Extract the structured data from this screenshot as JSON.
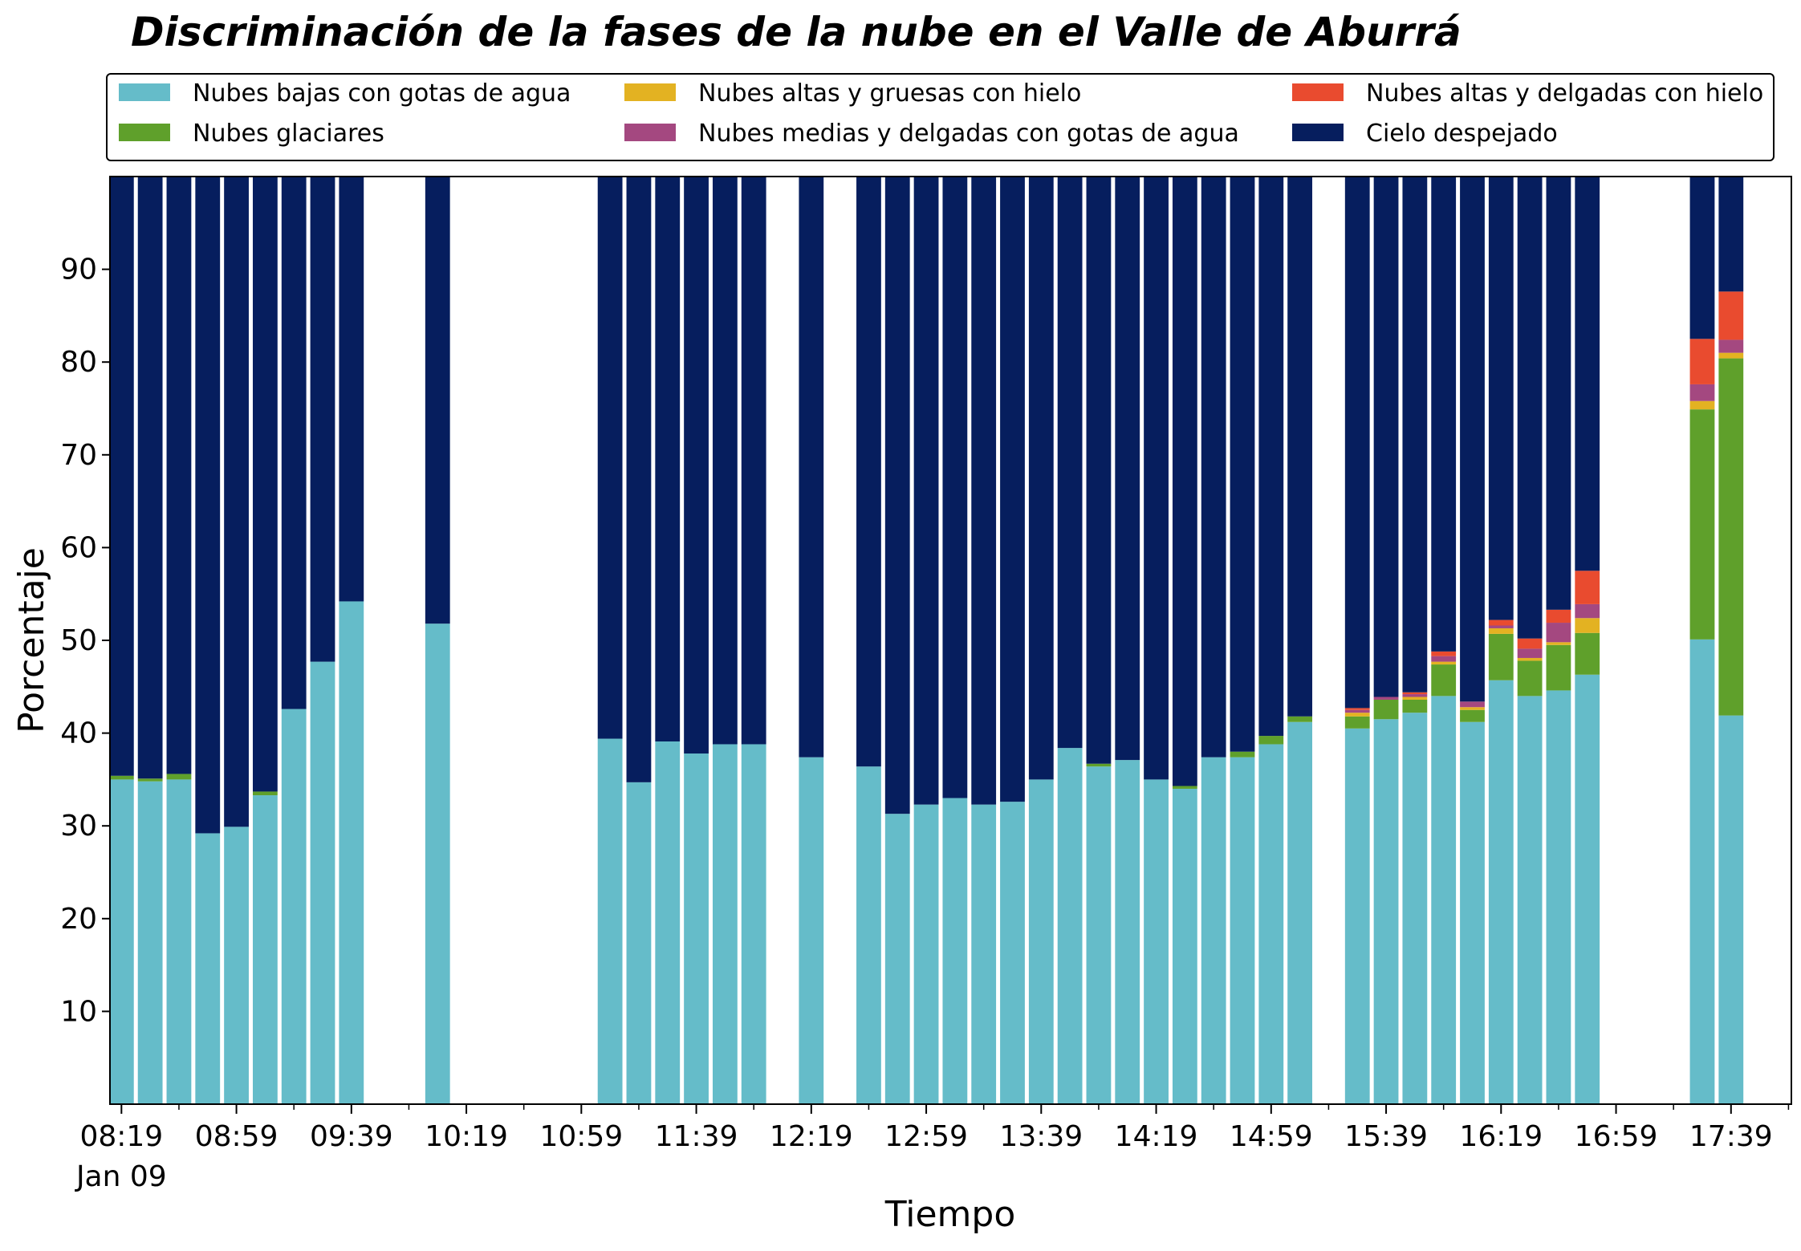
{
  "chart_data": {
    "type": "bar",
    "stacked": true,
    "title": "Discriminación de la fases de la nube en el Valle de Aburrá",
    "xlabel": "Tiempo",
    "ylabel": "Porcentaje",
    "ylim": [
      0,
      100
    ],
    "yticks": [
      10,
      20,
      30,
      40,
      50,
      60,
      70,
      80,
      90
    ],
    "x_minutes_range": [
      495,
      1080
    ],
    "bar_interval_minutes": 10,
    "xticks": [
      {
        "minute": 499,
        "label": "08:19",
        "sublabel": "Jan 09"
      },
      {
        "minute": 539,
        "label": "08:59"
      },
      {
        "minute": 579,
        "label": "09:39"
      },
      {
        "minute": 619,
        "label": "10:19"
      },
      {
        "minute": 659,
        "label": "10:59"
      },
      {
        "minute": 699,
        "label": "11:39"
      },
      {
        "minute": 739,
        "label": "12:19"
      },
      {
        "minute": 779,
        "label": "12:59"
      },
      {
        "minute": 819,
        "label": "13:39"
      },
      {
        "minute": 859,
        "label": "14:19"
      },
      {
        "minute": 899,
        "label": "14:59"
      },
      {
        "minute": 939,
        "label": "15:39"
      },
      {
        "minute": 979,
        "label": "16:19"
      },
      {
        "minute": 1019,
        "label": "16:59"
      },
      {
        "minute": 1059,
        "label": "17:39"
      }
    ],
    "legend_position": "top",
    "times": [
      "08:19",
      "08:29",
      "08:39",
      "08:49",
      "08:59",
      "09:09",
      "09:19",
      "09:29",
      "09:39",
      "10:09",
      "11:09",
      "11:19",
      "11:29",
      "11:39",
      "11:49",
      "11:59",
      "12:19",
      "12:39",
      "12:49",
      "12:59",
      "13:09",
      "13:19",
      "13:29",
      "13:39",
      "13:49",
      "13:59",
      "14:09",
      "14:19",
      "14:29",
      "14:39",
      "14:49",
      "14:59",
      "15:09",
      "15:29",
      "15:39",
      "15:49",
      "15:59",
      "16:09",
      "16:19",
      "16:29",
      "16:39",
      "16:49",
      "17:29",
      "17:39"
    ],
    "series": [
      {
        "name": "Nubes bajas con gotas de agua",
        "color": "#65bcc9",
        "values": [
          35,
          34.8,
          35,
          29.2,
          29.9,
          33.3,
          42.6,
          47.7,
          54.2,
          51.8,
          39.4,
          34.7,
          39.1,
          37.8,
          38.8,
          38.8,
          37.4,
          36.4,
          31.3,
          32.3,
          33,
          32.3,
          32.6,
          35,
          38.4,
          36.4,
          37.1,
          35,
          34,
          37.4,
          37.4,
          38.8,
          41.2,
          40.5,
          41.5,
          42.2,
          44,
          41.2,
          45.7,
          44,
          44.6,
          46.3,
          50.1,
          41.9
        ]
      },
      {
        "name": "Nubes glaciares",
        "color": "#5fa02b",
        "values": [
          0.4,
          0.3,
          0.6,
          0,
          0,
          0.4,
          0,
          0,
          0,
          0,
          0,
          0,
          0,
          0,
          0,
          0,
          0,
          0,
          0,
          0,
          0,
          0,
          0,
          0,
          0,
          0.3,
          0,
          0,
          0.3,
          0,
          0.6,
          0.9,
          0.6,
          1.3,
          2.1,
          1.4,
          3.4,
          1.3,
          5,
          3.8,
          4.9,
          4.5,
          24.8,
          38.5
        ]
      },
      {
        "name": "Nubes altas y gruesas con hielo",
        "color": "#e3b222",
        "values": [
          0,
          0,
          0,
          0,
          0,
          0,
          0,
          0,
          0,
          0,
          0,
          0,
          0,
          0,
          0,
          0,
          0,
          0,
          0,
          0,
          0,
          0,
          0,
          0,
          0,
          0,
          0,
          0,
          0,
          0,
          0,
          0,
          0,
          0.4,
          0,
          0.3,
          0.3,
          0.3,
          0.6,
          0.3,
          0.3,
          1.6,
          0.9,
          0.6
        ]
      },
      {
        "name": "Nubes medias y delgadas con gotas de agua",
        "color": "#a44880",
        "values": [
          0,
          0,
          0,
          0,
          0,
          0,
          0,
          0,
          0,
          0,
          0,
          0,
          0,
          0,
          0,
          0,
          0,
          0,
          0,
          0,
          0,
          0,
          0,
          0,
          0,
          0,
          0,
          0,
          0,
          0,
          0,
          0,
          0,
          0.3,
          0.3,
          0.3,
          0.6,
          0.6,
          0.3,
          1,
          2.1,
          1.5,
          1.8,
          1.4
        ]
      },
      {
        "name": "Nubes altas y delgadas con hielo",
        "color": "#e94b2f",
        "values": [
          0,
          0,
          0,
          0,
          0,
          0,
          0,
          0,
          0,
          0,
          0,
          0,
          0,
          0,
          0,
          0,
          0,
          0,
          0,
          0,
          0,
          0,
          0,
          0,
          0,
          0,
          0,
          0,
          0,
          0,
          0,
          0,
          0,
          0.2,
          0,
          0.2,
          0.5,
          0,
          0.6,
          1.1,
          1.4,
          3.6,
          4.9,
          5.2
        ]
      },
      {
        "name": "Cielo despejado",
        "color": "#061e5e",
        "values": [
          64.6,
          64.9,
          64.4,
          70.8,
          70.1,
          66.3,
          57.4,
          52.3,
          45.8,
          48.2,
          60.6,
          65.3,
          60.9,
          62.2,
          61.2,
          61.2,
          62.6,
          63.6,
          68.7,
          67.7,
          67,
          67.7,
          67.4,
          65,
          61.6,
          63.3,
          62.9,
          65,
          65.7,
          62.6,
          62,
          60.3,
          58.2,
          57.3,
          56.1,
          55.6,
          51.2,
          56.6,
          47.8,
          49.8,
          46.7,
          42.5,
          17.5,
          12.4
        ]
      }
    ]
  }
}
